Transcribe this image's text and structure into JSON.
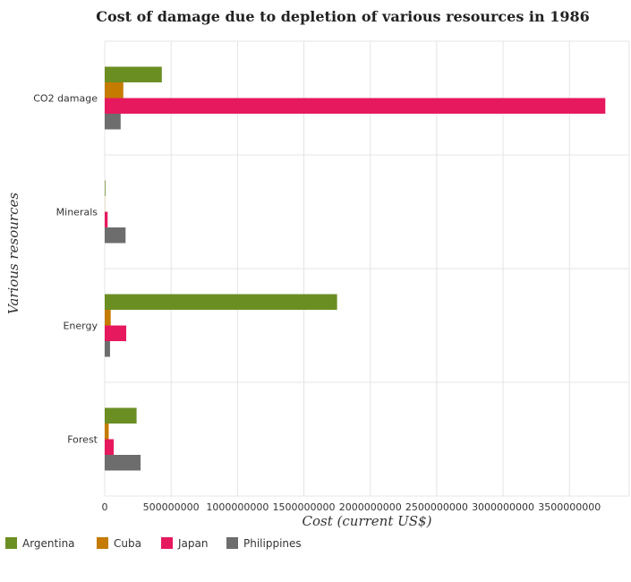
{
  "chart_data": {
    "type": "bar",
    "orientation": "horizontal",
    "title": "Cost of damage due to depletion of various resources in 1986",
    "xlabel": "Cost (current US$)",
    "ylabel": "Various resources",
    "categories": [
      "CO2 damage",
      "Minerals",
      "Energy",
      "Forest"
    ],
    "xlim": [
      0,
      3950000000
    ],
    "xticks": [
      0,
      500000000,
      1000000000,
      1500000000,
      2000000000,
      2500000000,
      3000000000,
      3500000000
    ],
    "xtick_labels": [
      "0",
      "500000000",
      "1000000000",
      "1500000000",
      "2000000000",
      "2500000000",
      "3000000000",
      "3500000000"
    ],
    "grid": true,
    "legend_position": "bottom-left",
    "series": [
      {
        "name": "Argentina",
        "color": "#6b8e23",
        "values": [
          430000000,
          5000000,
          1750000000,
          240000000
        ]
      },
      {
        "name": "Cuba",
        "color": "#c47b00",
        "values": [
          140000000,
          1000000,
          45000000,
          30000000
        ]
      },
      {
        "name": "Japan",
        "color": "#e6195f",
        "values": [
          3770000000,
          22000000,
          162000000,
          68000000
        ]
      },
      {
        "name": "Philippines",
        "color": "#6d6d6d",
        "values": [
          120000000,
          157000000,
          40000000,
          270000000
        ]
      }
    ]
  }
}
